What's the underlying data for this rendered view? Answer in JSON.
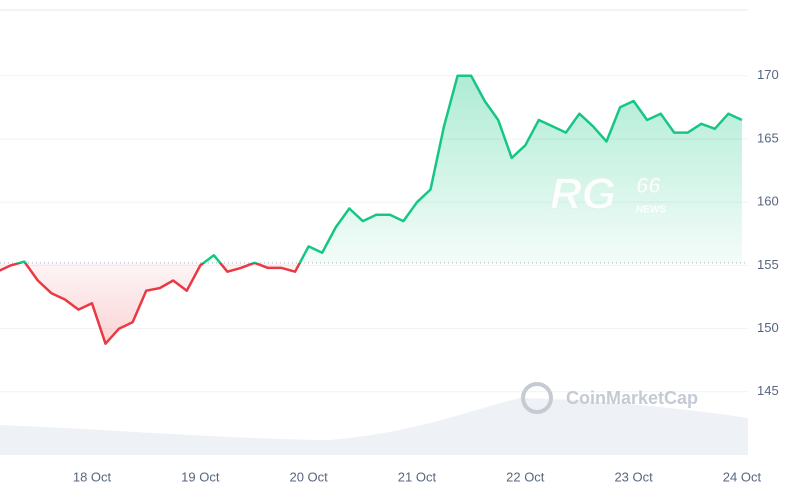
{
  "chart_data": {
    "type": "line",
    "categories": [
      null,
      null,
      null,
      null,
      null,
      null,
      null,
      "18 Oct",
      null,
      null,
      null,
      null,
      null,
      null,
      null,
      "19 Oct",
      null,
      null,
      null,
      null,
      null,
      null,
      null,
      "20 Oct",
      null,
      null,
      null,
      null,
      null,
      null,
      null,
      "21 Oct",
      null,
      null,
      null,
      null,
      null,
      null,
      null,
      "22 Oct",
      null,
      null,
      null,
      null,
      null,
      null,
      null,
      "23 Oct",
      null,
      null,
      null,
      null,
      null,
      null,
      null,
      "24 Oct"
    ],
    "series": [
      {
        "values": [
          154.5,
          155,
          155.3,
          153.8,
          152.8,
          152.3,
          151.5,
          152,
          148.8,
          150,
          150.5,
          153,
          153.2,
          153.8,
          153,
          155,
          155.8,
          154.5,
          154.8,
          155.2,
          154.8,
          154.8,
          154.5,
          156.5,
          156,
          158,
          159.5,
          158.5,
          159,
          159,
          158.5,
          160,
          161,
          166,
          170,
          170,
          168,
          166.5,
          163.5,
          164.5,
          166.5,
          166,
          165.5,
          167,
          166,
          164.8,
          167.5,
          168,
          166.5,
          167,
          165.5,
          165.5,
          166.2,
          165.8,
          167,
          166.5
        ]
      }
    ],
    "baseline": 155.2,
    "colors": {
      "above": "#16c784",
      "below": "#ea3943"
    },
    "ylim": [
      140,
      175.2
    ],
    "yticks": [
      145,
      150,
      155,
      160,
      165,
      170
    ],
    "grid": true,
    "watermarks": {
      "brand": "RG",
      "number": "66",
      "tag": "NEWS",
      "source": "CoinMarketCap"
    }
  }
}
